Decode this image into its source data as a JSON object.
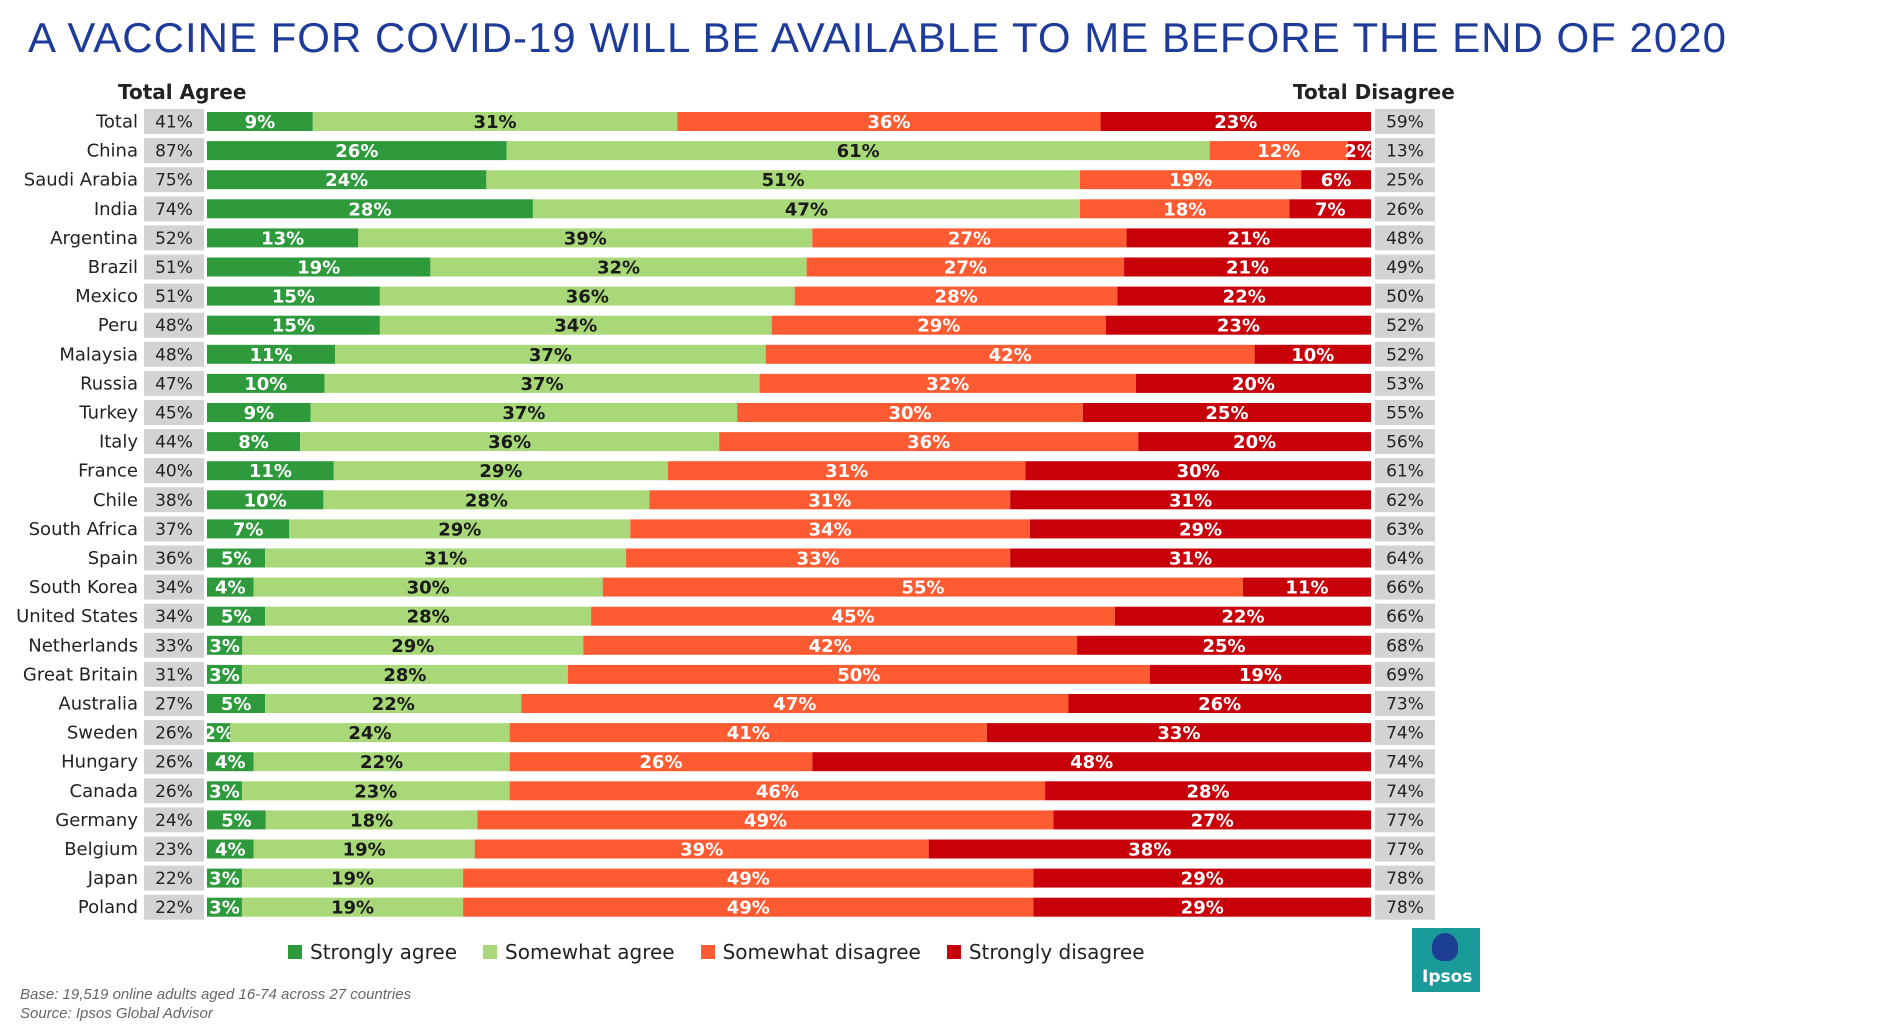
{
  "title": "A VACCINE FOR COVID-19 WILL BE AVAILABLE TO ME BEFORE THE END OF 2020",
  "headers": {
    "total_agree": "Total Agree",
    "total_disagree": "Total Disagree"
  },
  "legend": [
    {
      "label": "Strongly agree",
      "color": "#2e9a3c"
    },
    {
      "label": "Somewhat agree",
      "color": "#a8d878"
    },
    {
      "label": "Somewhat disagree",
      "color": "#ff5b33"
    },
    {
      "label": "Strongly disagree",
      "color": "#c8000a"
    }
  ],
  "footer": {
    "base": "Base: 19,519 online adults aged 16-74 across 27 countries",
    "source": "Source: Ipsos Global Advisor"
  },
  "logo_text": "Ipsos",
  "chart_data": {
    "type": "bar",
    "orientation": "horizontal",
    "stacked": true,
    "title": "A VACCINE FOR COVID-19 WILL BE AVAILABLE TO ME BEFORE THE END OF 2020",
    "unit": "%",
    "categories": [
      "Total",
      "China",
      "Saudi Arabia",
      "India",
      "Argentina",
      "Brazil",
      "Mexico",
      "Peru",
      "Malaysia",
      "Russia",
      "Turkey",
      "Italy",
      "France",
      "Chile",
      "South Africa",
      "Spain",
      "South Korea",
      "United States",
      "Netherlands",
      "Great Britain",
      "Australia",
      "Sweden",
      "Hungary",
      "Canada",
      "Germany",
      "Belgium",
      "Japan",
      "Poland"
    ],
    "series": [
      {
        "name": "Strongly agree",
        "values": [
          9,
          26,
          24,
          28,
          13,
          19,
          15,
          15,
          11,
          10,
          9,
          8,
          11,
          10,
          7,
          5,
          4,
          5,
          3,
          3,
          5,
          2,
          4,
          3,
          5,
          4,
          3,
          3
        ]
      },
      {
        "name": "Somewhat agree",
        "values": [
          31,
          61,
          51,
          47,
          39,
          32,
          36,
          34,
          37,
          37,
          37,
          36,
          29,
          28,
          29,
          31,
          30,
          28,
          29,
          28,
          22,
          24,
          22,
          23,
          18,
          19,
          19,
          19
        ]
      },
      {
        "name": "Somewhat disagree",
        "values": [
          36,
          12,
          19,
          18,
          27,
          27,
          28,
          29,
          42,
          32,
          30,
          36,
          31,
          31,
          34,
          33,
          55,
          45,
          42,
          50,
          47,
          41,
          26,
          46,
          49,
          39,
          49,
          49
        ]
      },
      {
        "name": "Strongly disagree",
        "values": [
          23,
          2,
          6,
          7,
          21,
          21,
          22,
          23,
          10,
          20,
          25,
          20,
          30,
          31,
          29,
          31,
          11,
          22,
          25,
          19,
          26,
          33,
          48,
          28,
          27,
          38,
          29,
          29
        ]
      }
    ],
    "total_agree": [
      41,
      87,
      75,
      74,
      52,
      51,
      51,
      48,
      48,
      47,
      45,
      44,
      40,
      38,
      37,
      36,
      34,
      34,
      33,
      31,
      27,
      26,
      26,
      26,
      24,
      23,
      22,
      22
    ],
    "total_disagree": [
      59,
      13,
      25,
      26,
      48,
      49,
      50,
      52,
      52,
      53,
      55,
      56,
      61,
      62,
      63,
      64,
      66,
      66,
      68,
      69,
      73,
      74,
      74,
      74,
      77,
      77,
      78,
      78
    ],
    "xlim": [
      0,
      100
    ]
  }
}
